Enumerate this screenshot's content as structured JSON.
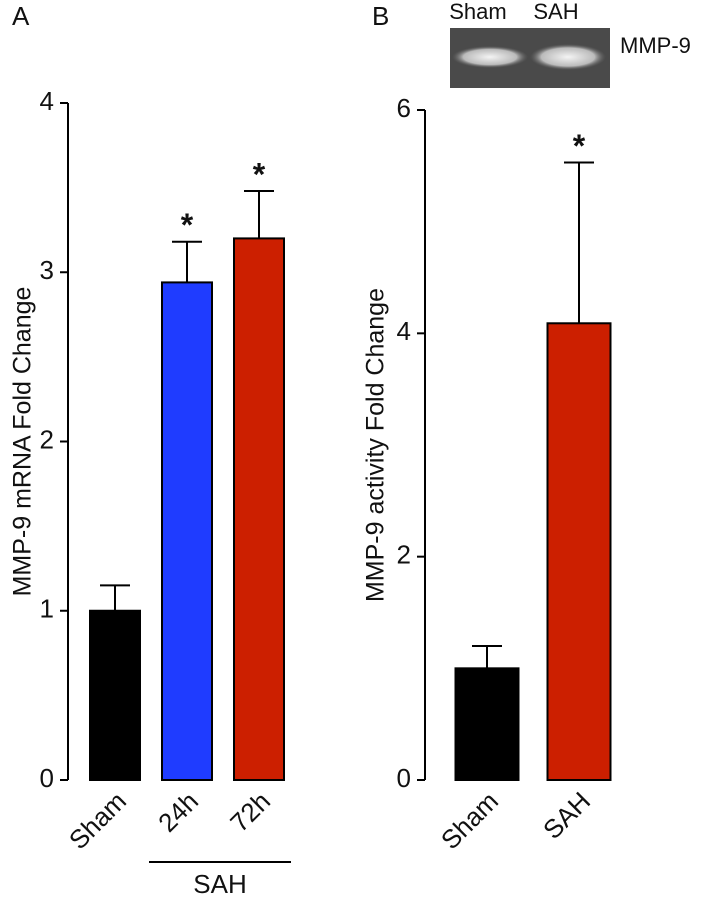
{
  "chart_data": [
    {
      "type": "bar",
      "panel": "A",
      "ylabel": "MMP-9 mRNA Fold Change",
      "categories": [
        "Sham",
        "24h",
        "72h"
      ],
      "values": [
        1.0,
        2.94,
        3.2
      ],
      "errors": [
        0.15,
        0.24,
        0.28
      ],
      "colors": [
        "#000000",
        "#1f3cff",
        "#cc1f00"
      ],
      "significance": [
        null,
        "*",
        "*"
      ],
      "group": {
        "label": "SAH",
        "from": 1,
        "to": 2
      },
      "ylim": [
        0,
        4
      ],
      "yticks": [
        0,
        1,
        2,
        3,
        4
      ]
    },
    {
      "type": "bar",
      "panel": "B",
      "ylabel": "MMP-9 activity Fold Change",
      "categories": [
        "Sham",
        "SAH"
      ],
      "values": [
        1.0,
        4.09
      ],
      "errors": [
        0.2,
        1.44
      ],
      "colors": [
        "#000000",
        "#cc1f00"
      ],
      "significance": [
        null,
        "*"
      ],
      "gel": {
        "lanes": [
          "Sham",
          "SAH"
        ],
        "label": "MMP-9"
      },
      "ylim": [
        0,
        6
      ],
      "yticks": [
        0,
        2,
        4,
        6
      ]
    }
  ]
}
